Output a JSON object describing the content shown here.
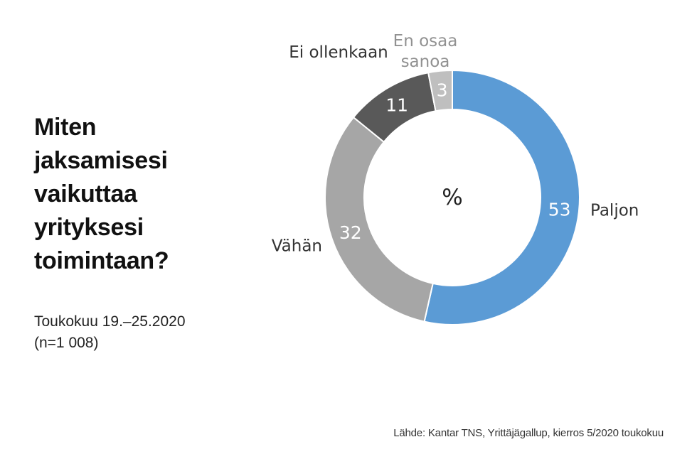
{
  "page": {
    "background_color": "#ffffff"
  },
  "left_panel": {
    "title": "Miten jaksamisesi vaikuttaa yrityksesi toimintaan?",
    "period": "Toukokuu 19.–25.2020",
    "sample_size": "(n=1 008)"
  },
  "source_caption": "Lähde: Kantar TNS, Yrittäjägallup, kierros 5/2020 toukokuu",
  "chart_data": {
    "type": "pie",
    "subtype": "donut",
    "title": "Miten jaksamisesi vaikuttaa yrityksesi toimintaan?",
    "unit": "%",
    "center_label": "%",
    "direction": "clockwise",
    "start_angle_deg": 0,
    "inner_radius_ratio": 0.69,
    "value_label_color": "#ffffff",
    "separator_color": "#ffffff",
    "segments": [
      {
        "label": "Paljon",
        "value": 53,
        "color": "#5b9bd5",
        "label_color": "#333333"
      },
      {
        "label": "Vähän",
        "value": 32,
        "color": "#a6a6a6",
        "label_color": "#333333"
      },
      {
        "label": "Ei ollenkaan",
        "value": 11,
        "color": "#595959",
        "label_color": "#333333"
      },
      {
        "label": "En osaa sanoa",
        "value": 3,
        "color": "#bfbfbf",
        "label_color": "#919191"
      }
    ]
  }
}
